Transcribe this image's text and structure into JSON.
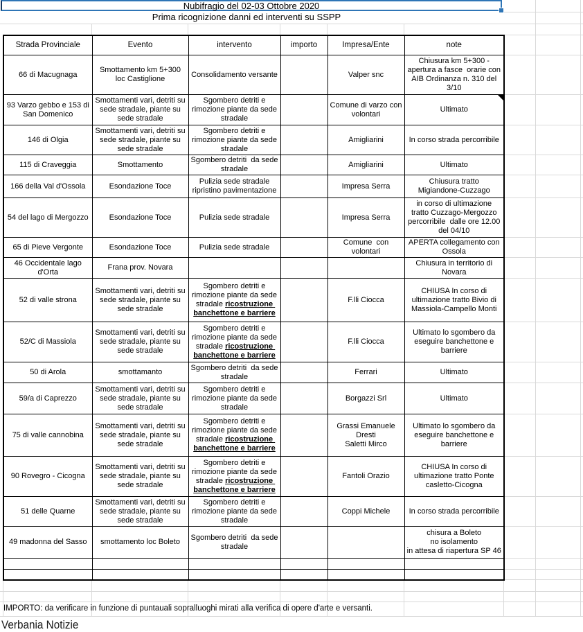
{
  "colors": {
    "accent_blue": "#2e75b6",
    "table_border": "#000000",
    "gridline": "#d9d9d9"
  },
  "sheet": {
    "title": "Nubifragio del 02-03 Ottobre 2020",
    "subtitle": "Prima ricognizione danni ed interventi su SSPP",
    "importo_note": "IMPORTO: da verificare in funzione di puntauali sopralluoghi mirati alla verifica di opere d'arte e versanti.",
    "watermark": "Verbania Notizie"
  },
  "table": {
    "headers": [
      "Strada Provinciale",
      "Evento",
      "intervento",
      "importo",
      "Impresa/Ente",
      "note"
    ],
    "rows": [
      {
        "strada": "66 di Macugnaga",
        "evento": "Smottamento km 5+300 loc Castiglione",
        "intervento": "Consolidamento versante",
        "intervento_bold": "",
        "importo": "",
        "impresa": "Valper snc",
        "note": "Chiusura km 5+300 -\napertura a fasce  orarie con\nAIB Ordinanza n. 310 del\n3/10",
        "corner_marker": false
      },
      {
        "strada": "93 Varzo gebbo e 153 di San Domenico",
        "evento": "Smottamenti vari, detriti su sede stradale, piante su sede stradale",
        "intervento": "Sgombero detriti e rimozione piante da sede stradale",
        "intervento_bold": "",
        "importo": "",
        "impresa": "Comune di varzo con volontari",
        "note": "Ultimato",
        "corner_marker": true
      },
      {
        "strada": "146 di Olgia",
        "evento": "Smottamenti vari, detriti su sede stradale, piante su sede stradale",
        "intervento": "Sgombero detriti e rimozione piante da sede stradale",
        "intervento_bold": "",
        "importo": "",
        "impresa": "Amigliarini",
        "note": "In corso strada percorribile",
        "corner_marker": false
      },
      {
        "strada": "115 di Craveggia",
        "evento": "Smottamento",
        "intervento": "Sgombero detriti  da sede stradale",
        "intervento_bold": "",
        "importo": "",
        "impresa": "Amigliarini",
        "note": "Ultimato",
        "corner_marker": false
      },
      {
        "strada": "166 della Val d'Ossola",
        "evento": "Esondazione Toce",
        "intervento": "Pulizia sede stradale ripristino pavimentazione",
        "intervento_bold": "",
        "importo": "",
        "impresa": "Impresa Serra",
        "note": "Chiusura tratto\nMigiandone-Cuzzago",
        "corner_marker": false
      },
      {
        "strada": "54 del lago di Mergozzo",
        "evento": "Esondazione Toce",
        "intervento": "Pulizia sede stradale",
        "intervento_bold": "",
        "importo": "",
        "impresa": "Impresa Serra",
        "note": "in corso di ultimazione\ntratto Cuzzago-Mergozzo\npercorribile  dalle ore 12.00\ndel 04/10",
        "corner_marker": false
      },
      {
        "strada": "65 di Pieve Vergonte",
        "evento": "Esondazione Toce",
        "intervento": "Pulizia sede stradale",
        "intervento_bold": "",
        "importo": "",
        "impresa": "Comune  con volontari",
        "note": "APERTA collegamento con\nOssola",
        "corner_marker": false
      },
      {
        "strada": "46 Occidentale lago d'Orta",
        "evento": "Frana prov. Novara",
        "intervento": "",
        "intervento_bold": "",
        "importo": "",
        "impresa": "",
        "note": "Chiusura in territorio di\nNovara",
        "corner_marker": false
      },
      {
        "strada": "52 di valle strona",
        "evento": "Smottamenti vari, detriti su sede stradale, piante su sede stradale",
        "intervento": "Sgombero detriti e rimozione piante da sede stradale",
        "intervento_bold": "ricostruzione banchettone e barriere",
        "importo": "",
        "impresa": "F.lli Ciocca",
        "note": "CHIUSA In corso di\nultimazione tratto Bivio di\nMassiola-Campello Monti",
        "corner_marker": false
      },
      {
        "strada": "52/C di Massiola",
        "evento": "Smottamenti vari, detriti su sede stradale, piante su sede stradale",
        "intervento": "Sgombero detriti e rimozione piante da sede stradale",
        "intervento_bold": "ricostruzione banchettone e barriere",
        "importo": "",
        "impresa": "F.lli Ciocca",
        "note": "Ultimato lo sgombero da\neseguire banchettone e\nbarriere",
        "corner_marker": false
      },
      {
        "strada": "50 di Arola",
        "evento": "smottamanto",
        "intervento": "Sgombero detriti  da sede stradale",
        "intervento_bold": "",
        "importo": "",
        "impresa": "Ferrari",
        "note": "Ultimato",
        "corner_marker": false
      },
      {
        "strada": "59/a di Caprezzo",
        "evento": "Smottamenti vari, detriti su sede stradale, piante su sede stradale",
        "intervento": "Sgombero detriti e rimozione piante da sede stradale",
        "intervento_bold": "",
        "importo": "",
        "impresa": "Borgazzi Srl",
        "note": "Ultimato",
        "corner_marker": false
      },
      {
        "strada": "75 di valle cannobina",
        "evento": "Smottamenti vari, detriti su sede stradale, piante su sede stradale",
        "intervento": "Sgombero detriti e rimozione piante da sede stradale",
        "intervento_bold": "ricostruzione banchettone e barriere",
        "importo": "",
        "impresa": "Grassi Emanuele\nDresti\nSaletti Mirco",
        "note": "Ultimato lo sgombero da\neseguire banchettone e\nbarriere",
        "corner_marker": false
      },
      {
        "strada": "90 Rovegro - Cicogna",
        "evento": "Smottamenti vari, detriti su sede stradale, piante su sede stradale",
        "intervento": "Sgombero detriti e rimozione piante da sede stradale",
        "intervento_bold": "ricostruzione banchettone e barriere",
        "importo": "",
        "impresa": "Fantoli Orazio",
        "note": "CHIUSA In corso di\nultimazione tratto Ponte\ncasletto-Cicogna",
        "corner_marker": false
      },
      {
        "strada": "51 delle Quarne",
        "evento": "Smottamenti vari, detriti su sede stradale, piante su sede stradale",
        "intervento": "Sgombero detriti e rimozione piante da sede stradale",
        "intervento_bold": "",
        "importo": "",
        "impresa": "Coppi Michele",
        "note": "In corso strada percorribile",
        "corner_marker": false
      },
      {
        "strada": "49 madonna del Sasso",
        "evento": "smottamento loc Boleto",
        "intervento": "Sgombero detriti  da sede stradale",
        "intervento_bold": "",
        "importo": "",
        "impresa": "",
        "note": "chisura a Boleto\nno isolamento\nin attesa di riapertura SP 46",
        "corner_marker": false
      },
      {
        "strada": "",
        "evento": "",
        "intervento": "",
        "intervento_bold": "",
        "importo": "",
        "impresa": "",
        "note": "",
        "corner_marker": false
      },
      {
        "strada": "",
        "evento": "",
        "intervento": "",
        "intervento_bold": "",
        "importo": "",
        "impresa": "",
        "note": "",
        "corner_marker": false
      }
    ]
  }
}
